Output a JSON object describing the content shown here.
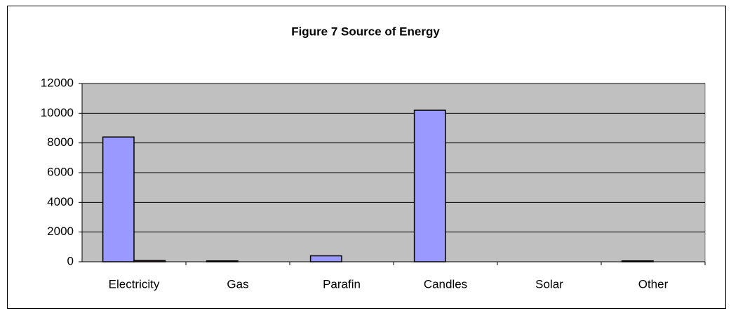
{
  "chart_data": {
    "type": "bar",
    "title": "Figure 7 Source of Energy",
    "categories": [
      "Electricity",
      "Gas",
      "Parafin",
      "Candles",
      "Solar",
      "Other"
    ],
    "series": [
      {
        "color": "#9999ff",
        "values": [
          8400,
          60,
          400,
          10200,
          0,
          60
        ]
      },
      {
        "color": "#993366",
        "values": [
          80,
          0,
          0,
          0,
          0,
          0
        ]
      }
    ],
    "ylim": [
      0,
      12000
    ],
    "yticks": [
      0,
      2000,
      4000,
      6000,
      8000,
      10000,
      12000
    ],
    "grid": true
  }
}
